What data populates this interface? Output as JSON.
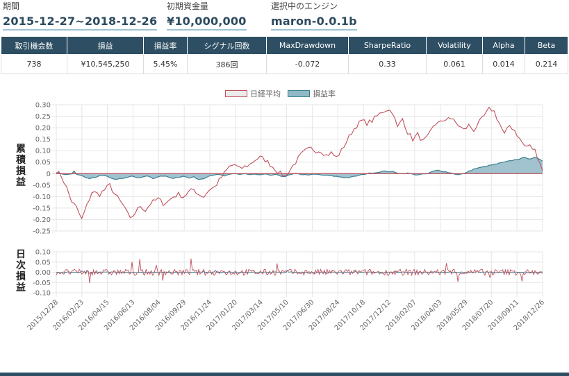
{
  "header": {
    "period_label": "期間",
    "period_value": "2015-12-27~2018-12-26",
    "capital_label": "初期資金量",
    "capital_value": "¥10,000,000",
    "engine_label": "選択中のエンジン",
    "engine_value": "maron-0.0.1b"
  },
  "stats": {
    "headers": [
      "取引機会数",
      "損益",
      "損益率",
      "シグナル回数",
      "MaxDrawdown",
      "SharpeRatio",
      "Volatility",
      "Alpha",
      "Beta"
    ],
    "values": [
      "738",
      "¥10,545,250",
      "5.45%",
      "386回",
      "-0.072",
      "0.33",
      "0.061",
      "0.014",
      "0.214"
    ]
  },
  "chart_data": [
    {
      "type": "area",
      "title": "",
      "ylabel": "累積損益",
      "ylim": [
        -0.25,
        0.3
      ],
      "yticks": [
        "0.30",
        "0.25",
        "0.20",
        "0.15",
        "0.10",
        "0.05",
        "0",
        "-0.05",
        "-0.10",
        "-0.15",
        "-0.20",
        "-0.25"
      ],
      "legend": [
        "日経平均",
        "損益率"
      ],
      "legend_position": "top-center",
      "series": [
        {
          "name": "日経平均",
          "color": "#c0505c",
          "anchors": [
            [
              0,
              0.01
            ],
            [
              2,
              -0.01
            ],
            [
              4,
              -0.06
            ],
            [
              6,
              -0.12
            ],
            [
              8,
              -0.15
            ],
            [
              10,
              -0.2
            ],
            [
              12,
              -0.14
            ],
            [
              14,
              -0.08
            ],
            [
              17,
              -0.09
            ],
            [
              19,
              -0.07
            ],
            [
              21,
              -0.05
            ],
            [
              23,
              -0.09
            ],
            [
              25,
              -0.12
            ],
            [
              27,
              -0.15
            ],
            [
              29,
              -0.2
            ],
            [
              31,
              -0.17
            ],
            [
              33,
              -0.14
            ],
            [
              35,
              -0.16
            ],
            [
              37,
              -0.13
            ],
            [
              40,
              -0.11
            ],
            [
              42,
              -0.13
            ],
            [
              44,
              -0.12
            ],
            [
              46,
              -0.1
            ],
            [
              48,
              -0.09
            ],
            [
              50,
              -0.1
            ],
            [
              52,
              -0.08
            ],
            [
              54,
              -0.07
            ],
            [
              56,
              -0.09
            ],
            [
              58,
              -0.1
            ],
            [
              60,
              -0.07
            ],
            [
              62,
              -0.06
            ],
            [
              64,
              -0.03
            ],
            [
              66,
              0.0
            ],
            [
              68,
              0.03
            ],
            [
              70,
              0.04
            ],
            [
              72,
              0.02
            ],
            [
              74,
              0.03
            ],
            [
              76,
              0.04
            ],
            [
              78,
              0.06
            ],
            [
              80,
              0.07
            ],
            [
              82,
              0.06
            ],
            [
              84,
              0.04
            ],
            [
              86,
              0.02
            ],
            [
              88,
              0.0
            ],
            [
              90,
              -0.01
            ],
            [
              92,
              0.02
            ],
            [
              94,
              0.05
            ],
            [
              96,
              0.08
            ],
            [
              98,
              0.1
            ],
            [
              100,
              0.11
            ],
            [
              102,
              0.1
            ],
            [
              104,
              0.1
            ],
            [
              106,
              0.08
            ],
            [
              108,
              0.09
            ],
            [
              110,
              0.07
            ],
            [
              112,
              0.1
            ],
            [
              114,
              0.14
            ],
            [
              116,
              0.18
            ],
            [
              118,
              0.21
            ],
            [
              120,
              0.23
            ],
            [
              122,
              0.22
            ],
            [
              124,
              0.23
            ],
            [
              126,
              0.25
            ],
            [
              128,
              0.27
            ],
            [
              130,
              0.28
            ],
            [
              132,
              0.27
            ],
            [
              134,
              0.2
            ],
            [
              136,
              0.24
            ],
            [
              138,
              0.18
            ],
            [
              140,
              0.15
            ],
            [
              142,
              0.17
            ],
            [
              144,
              0.14
            ],
            [
              146,
              0.16
            ],
            [
              148,
              0.2
            ],
            [
              150,
              0.23
            ],
            [
              152,
              0.22
            ],
            [
              154,
              0.25
            ],
            [
              156,
              0.23
            ],
            [
              158,
              0.21
            ],
            [
              160,
              0.19
            ],
            [
              162,
              0.21
            ],
            [
              164,
              0.19
            ],
            [
              166,
              0.22
            ],
            [
              168,
              0.25
            ],
            [
              170,
              0.28
            ],
            [
              171,
              0.28
            ],
            [
              172,
              0.27
            ],
            [
              174,
              0.22
            ],
            [
              176,
              0.17
            ],
            [
              178,
              0.21
            ],
            [
              180,
              0.19
            ],
            [
              182,
              0.15
            ],
            [
              184,
              0.12
            ],
            [
              186,
              0.12
            ],
            [
              188,
              0.1
            ],
            [
              190,
              0.05
            ],
            [
              191,
              0.01
            ]
          ]
        },
        {
          "name": "損益率",
          "color": "#3c7f91",
          "anchors": [
            [
              0,
              0.005
            ],
            [
              2,
              0.0
            ],
            [
              4,
              -0.005
            ],
            [
              6,
              0.0
            ],
            [
              7,
              0.01
            ],
            [
              8,
              -0.005
            ],
            [
              10,
              -0.01
            ],
            [
              12,
              -0.02
            ],
            [
              14,
              -0.02
            ],
            [
              16,
              -0.015
            ],
            [
              18,
              -0.005
            ],
            [
              20,
              -0.01
            ],
            [
              22,
              -0.02
            ],
            [
              24,
              -0.025
            ],
            [
              26,
              -0.02
            ],
            [
              28,
              -0.015
            ],
            [
              30,
              -0.01
            ],
            [
              32,
              -0.02
            ],
            [
              34,
              -0.015
            ],
            [
              36,
              -0.01
            ],
            [
              38,
              -0.02
            ],
            [
              40,
              -0.015
            ],
            [
              42,
              -0.01
            ],
            [
              44,
              -0.015
            ],
            [
              46,
              -0.02
            ],
            [
              48,
              -0.015
            ],
            [
              50,
              -0.01
            ],
            [
              52,
              -0.02
            ],
            [
              54,
              -0.015
            ],
            [
              56,
              -0.025
            ],
            [
              58,
              -0.02
            ],
            [
              60,
              -0.01
            ],
            [
              62,
              -0.005
            ],
            [
              64,
              -0.005
            ],
            [
              66,
              -0.01
            ],
            [
              68,
              -0.005
            ],
            [
              70,
              0.0
            ],
            [
              72,
              -0.003
            ],
            [
              74,
              0.0
            ],
            [
              76,
              -0.005
            ],
            [
              78,
              -0.003
            ],
            [
              80,
              -0.006
            ],
            [
              82,
              -0.003
            ],
            [
              84,
              -0.007
            ],
            [
              86,
              -0.005
            ],
            [
              88,
              -0.01
            ],
            [
              90,
              -0.012
            ],
            [
              92,
              -0.005
            ],
            [
              94,
              0.0
            ],
            [
              96,
              -0.003
            ],
            [
              98,
              -0.005
            ],
            [
              100,
              -0.005
            ],
            [
              102,
              -0.003
            ],
            [
              104,
              -0.006
            ],
            [
              106,
              -0.008
            ],
            [
              108,
              -0.01
            ],
            [
              110,
              -0.012
            ],
            [
              112,
              -0.015
            ],
            [
              114,
              -0.018
            ],
            [
              116,
              -0.015
            ],
            [
              118,
              -0.01
            ],
            [
              120,
              -0.005
            ],
            [
              122,
              0.0
            ],
            [
              124,
              0.003
            ],
            [
              126,
              0.005
            ],
            [
              128,
              0.01
            ],
            [
              130,
              0.01
            ],
            [
              132,
              0.008
            ],
            [
              134,
              0.003
            ],
            [
              136,
              0.0
            ],
            [
              138,
              0.002
            ],
            [
              140,
              -0.003
            ],
            [
              142,
              -0.005
            ],
            [
              144,
              -0.003
            ],
            [
              146,
              0.0
            ],
            [
              148,
              0.01
            ],
            [
              150,
              0.015
            ],
            [
              152,
              0.01
            ],
            [
              154,
              0.005
            ],
            [
              156,
              0.0
            ],
            [
              158,
              -0.005
            ],
            [
              160,
              0.0
            ],
            [
              162,
              0.01
            ],
            [
              164,
              0.02
            ],
            [
              166,
              0.025
            ],
            [
              168,
              0.03
            ],
            [
              170,
              0.035
            ],
            [
              172,
              0.04
            ],
            [
              174,
              0.045
            ],
            [
              176,
              0.05
            ],
            [
              178,
              0.055
            ],
            [
              180,
              0.06
            ],
            [
              182,
              0.065
            ],
            [
              184,
              0.07
            ],
            [
              186,
              0.065
            ],
            [
              188,
              0.07
            ],
            [
              190,
              0.06
            ],
            [
              191,
              0.055
            ]
          ]
        }
      ]
    },
    {
      "type": "line",
      "title": "",
      "ylabel": "日次損益",
      "ylim": [
        -0.1,
        0.1
      ],
      "yticks": [
        "0.10",
        "0.05",
        "0.00",
        "-0.05",
        "-0.10"
      ],
      "series": [
        {
          "name": "日経平均",
          "color": "#c0505c",
          "typical_abs_daily": 0.015,
          "max_abs_daily": 0.07
        },
        {
          "name": "損益率",
          "color": "#3c7f91",
          "typical_abs_daily": 0.002,
          "max_abs_daily": 0.01
        }
      ],
      "x_tick_labels": [
        "2015/12/28",
        "2016/02/23",
        "2016/04/15",
        "2016/06/13",
        "2016/08/04",
        "2016/09/29",
        "2016/11/24",
        "2017/01/20",
        "2017/03/14",
        "2017/05/10",
        "2017/06/30",
        "2017/08/24",
        "2017/10/18",
        "2017/12/12",
        "2018/02/07",
        "2018/04/03",
        "2018/05/29",
        "2018/07/20",
        "2018/09/11",
        "2018/12/26"
      ]
    }
  ]
}
